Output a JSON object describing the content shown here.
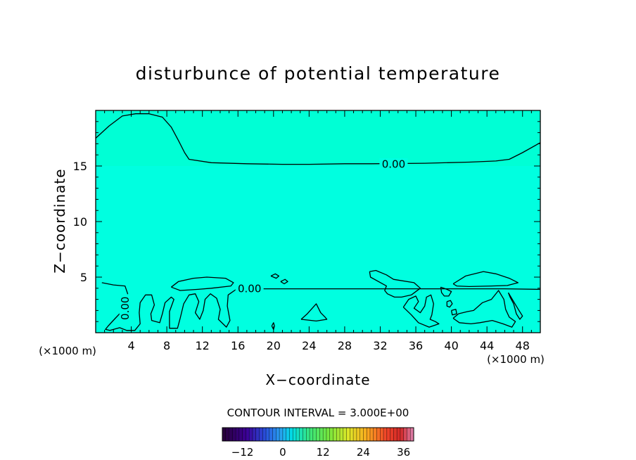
{
  "chart_data": {
    "type": "contour",
    "title": "disturbunce of potential temperature",
    "xlabel": "X−coordinate",
    "ylabel": "Z−coordinate",
    "x_unit_left": "(×1000 m)",
    "x_unit_right": "(×1000 m)",
    "xlim": [
      0,
      50
    ],
    "ylim": [
      0,
      20
    ],
    "xticks": [
      4,
      8,
      12,
      16,
      20,
      24,
      28,
      32,
      36,
      40,
      44,
      48
    ],
    "yticks": [
      5,
      10,
      15
    ],
    "contour_interval_text": "CONTOUR INTERVAL = 3.000E+00",
    "contour_label": "0.00",
    "contour_label_values": [
      0.0,
      0.0,
      0.0
    ],
    "field_color": "#00ffe0",
    "colorbar": {
      "min": -18,
      "max": 39,
      "ticks": [
        -12,
        0,
        12,
        24,
        36
      ],
      "tick_labels": [
        "−12",
        "0",
        "12",
        "24",
        "36"
      ]
    },
    "contours": [
      {
        "value": 0.0,
        "points": [
          [
            0,
            17.5
          ],
          [
            1.5,
            18.6
          ],
          [
            3,
            19.5
          ],
          [
            4.5,
            19.7
          ],
          [
            6,
            19.7
          ],
          [
            7.5,
            19.4
          ],
          [
            8.5,
            18.5
          ],
          [
            9.3,
            17.3
          ],
          [
            10,
            16.2
          ],
          [
            10.5,
            15.6
          ],
          [
            13,
            15.3
          ],
          [
            17,
            15.2
          ],
          [
            21,
            15.15
          ],
          [
            24,
            15.15
          ],
          [
            28,
            15.2
          ],
          [
            31,
            15.2
          ],
          [
            37,
            15.25
          ],
          [
            42,
            15.35
          ],
          [
            45,
            15.45
          ],
          [
            46.5,
            15.6
          ],
          [
            48,
            16.2
          ],
          [
            50,
            17.1
          ]
        ]
      },
      {
        "value": 0.0,
        "points": [
          [
            0.7,
            4.5
          ],
          [
            2,
            4.3
          ],
          [
            3.3,
            4.2
          ],
          [
            3.6,
            3.5
          ],
          [
            3.4,
            2.5
          ],
          [
            2.8,
            1.8
          ],
          [
            2.1,
            1.2
          ],
          [
            1.4,
            0.6
          ],
          [
            1.1,
            0.3
          ],
          [
            1.6,
            0.2
          ],
          [
            2.7,
            0.45
          ],
          [
            3.5,
            0.2
          ],
          [
            4.4,
            0.2
          ],
          [
            5,
            0.8
          ],
          [
            4.9,
            1.8
          ],
          [
            5,
            2.7
          ],
          [
            5.6,
            3.4
          ],
          [
            6.3,
            3.4
          ],
          [
            6.6,
            2.5
          ],
          [
            6.2,
            1.7
          ],
          [
            6.3,
            1.1
          ],
          [
            7.2,
            0.9
          ],
          [
            7.5,
            1.7
          ],
          [
            7.8,
            2.7
          ],
          [
            8.5,
            3.2
          ],
          [
            8.8,
            3.0
          ],
          [
            8.3,
            1.9
          ],
          [
            8.3,
            0.4
          ],
          [
            9.2,
            0.4
          ],
          [
            9.5,
            1.3
          ],
          [
            9.9,
            2.6
          ],
          [
            10.5,
            3.4
          ],
          [
            11.2,
            3.5
          ],
          [
            11.6,
            2.8
          ],
          [
            11.2,
            1.8
          ],
          [
            11.7,
            1.2
          ],
          [
            12.1,
            2.0
          ],
          [
            12.3,
            3.0
          ],
          [
            12.9,
            3.5
          ],
          [
            13.6,
            3.1
          ],
          [
            14,
            2.1
          ],
          [
            13.8,
            1.2
          ],
          [
            14.7,
            0.5
          ],
          [
            15.1,
            1.1
          ],
          [
            14.8,
            2.4
          ],
          [
            14.9,
            3.4
          ],
          [
            15.8,
            3.9
          ],
          [
            17,
            4.0
          ],
          [
            19,
            3.95
          ],
          [
            23,
            3.95
          ],
          [
            27,
            3.95
          ],
          [
            33,
            3.95
          ],
          [
            39,
            3.95
          ],
          [
            44,
            3.95
          ],
          [
            46,
            3.95
          ],
          [
            50,
            3.9
          ]
        ]
      },
      {
        "value": 0.0,
        "points": [
          [
            8.5,
            4.1
          ],
          [
            9.3,
            4.6
          ],
          [
            11,
            4.9
          ],
          [
            12.5,
            5.0
          ],
          [
            14.6,
            4.9
          ],
          [
            15.5,
            4.5
          ],
          [
            15.2,
            4.2
          ],
          [
            13,
            4.0
          ],
          [
            11.5,
            3.9
          ],
          [
            9.5,
            3.8
          ],
          [
            8.5,
            4.1
          ]
        ]
      },
      {
        "value": 0.0,
        "points": [
          [
            30.8,
            5.5
          ],
          [
            31.5,
            5.6
          ],
          [
            32.7,
            5.2
          ],
          [
            33.5,
            4.8
          ],
          [
            35.8,
            4.5
          ],
          [
            36.5,
            4.0
          ],
          [
            35.5,
            3.4
          ],
          [
            34.4,
            3.2
          ],
          [
            33.6,
            3.2
          ],
          [
            32.8,
            3.5
          ],
          [
            32.5,
            3.8
          ],
          [
            32.7,
            4.2
          ],
          [
            31.8,
            4.6
          ],
          [
            30.9,
            5.0
          ],
          [
            30.8,
            5.5
          ]
        ]
      },
      {
        "value": 0.0,
        "points": [
          [
            40.2,
            4.4
          ],
          [
            41.6,
            5.1
          ],
          [
            43.6,
            5.5
          ],
          [
            45,
            5.3
          ],
          [
            46.5,
            4.9
          ],
          [
            47.5,
            4.5
          ],
          [
            46.3,
            4.25
          ],
          [
            44.5,
            4.2
          ],
          [
            42,
            4.15
          ],
          [
            40.6,
            4.2
          ],
          [
            40.2,
            4.4
          ]
        ]
      },
      {
        "value": 0.0,
        "points": [
          [
            23.1,
            1.2
          ],
          [
            23.8,
            1.7
          ],
          [
            24.8,
            2.6
          ],
          [
            25.3,
            1.8
          ],
          [
            25.8,
            1.4
          ],
          [
            26,
            1.2
          ],
          [
            24.8,
            1.05
          ],
          [
            23.1,
            1.2
          ]
        ]
      },
      {
        "value": 0.0,
        "points": [
          [
            34.6,
            2.3
          ],
          [
            35.2,
            3.0
          ],
          [
            36.0,
            3.3
          ],
          [
            36.3,
            2.8
          ],
          [
            35.8,
            2.2
          ],
          [
            36.5,
            1.8
          ],
          [
            37.0,
            2.4
          ],
          [
            37.2,
            3.2
          ],
          [
            37.7,
            3.4
          ],
          [
            38.0,
            2.6
          ],
          [
            37.8,
            1.6
          ],
          [
            37.6,
            1.2
          ],
          [
            38.2,
            1.0
          ],
          [
            38.6,
            0.8
          ],
          [
            37.5,
            0.5
          ],
          [
            36.3,
            0.9
          ],
          [
            35.5,
            1.6
          ],
          [
            34.6,
            2.3
          ]
        ]
      },
      {
        "value": 0.0,
        "points": [
          [
            40.2,
            1.3
          ],
          [
            40.8,
            1.7
          ],
          [
            41.8,
            1.9
          ],
          [
            42.5,
            2.0
          ],
          [
            43.5,
            2.7
          ],
          [
            44.5,
            3.0
          ],
          [
            45.3,
            3.8
          ],
          [
            45.9,
            3.0
          ],
          [
            46.1,
            2.1
          ],
          [
            46.5,
            1.4
          ],
          [
            47.2,
            1.0
          ],
          [
            46.8,
            0.5
          ],
          [
            45.8,
            0.8
          ],
          [
            44.6,
            1.1
          ],
          [
            43.2,
            0.9
          ],
          [
            42.2,
            0.8
          ],
          [
            40.9,
            0.9
          ],
          [
            40.2,
            1.3
          ]
        ]
      },
      {
        "value": 0.0,
        "points": [
          [
            46.4,
            3.6
          ],
          [
            47.0,
            2.8
          ],
          [
            47.6,
            2.0
          ],
          [
            48.0,
            1.5
          ],
          [
            47.7,
            1.2
          ],
          [
            47.3,
            1.7
          ],
          [
            47.0,
            2.6
          ],
          [
            46.6,
            3.2
          ],
          [
            46.4,
            3.6
          ]
        ]
      },
      {
        "value": 0.0,
        "points": [
          [
            38.8,
            4.1
          ],
          [
            39.5,
            3.9
          ],
          [
            40.0,
            3.7
          ],
          [
            39.7,
            3.3
          ],
          [
            39.2,
            3.3
          ],
          [
            38.9,
            3.6
          ],
          [
            38.8,
            4.1
          ]
        ]
      },
      {
        "value": 0.0,
        "points": [
          [
            39.5,
            2.8
          ],
          [
            39.9,
            2.9
          ],
          [
            40.1,
            2.6
          ],
          [
            39.8,
            2.3
          ],
          [
            39.5,
            2.4
          ],
          [
            39.5,
            2.8
          ]
        ]
      },
      {
        "value": 0.0,
        "points": [
          [
            40.0,
            2.0
          ],
          [
            40.5,
            2.1
          ],
          [
            40.6,
            1.7
          ],
          [
            40.1,
            1.6
          ],
          [
            40.0,
            2.0
          ]
        ]
      },
      {
        "value": 0.0,
        "points": [
          [
            19.7,
            5.1
          ],
          [
            20.2,
            5.3
          ],
          [
            20.6,
            5.1
          ],
          [
            20.3,
            4.9
          ],
          [
            19.7,
            5.1
          ]
        ]
      },
      {
        "value": 0.0,
        "points": [
          [
            20.8,
            4.6
          ],
          [
            21.3,
            4.8
          ],
          [
            21.6,
            4.6
          ],
          [
            21.2,
            4.4
          ],
          [
            20.8,
            4.6
          ]
        ]
      },
      {
        "value": 0.0,
        "points": [
          [
            19.8,
            0.6
          ],
          [
            20.0,
            0.9
          ],
          [
            20.1,
            0.6
          ],
          [
            20.0,
            0.3
          ],
          [
            19.8,
            0.6
          ]
        ]
      }
    ],
    "contour_label_positions": [
      [
        33.5,
        15.2
      ],
      [
        17.3,
        4.0
      ],
      [
        3.3,
        2.2
      ]
    ],
    "contour_label_rotations": [
      0,
      0,
      -90
    ]
  }
}
